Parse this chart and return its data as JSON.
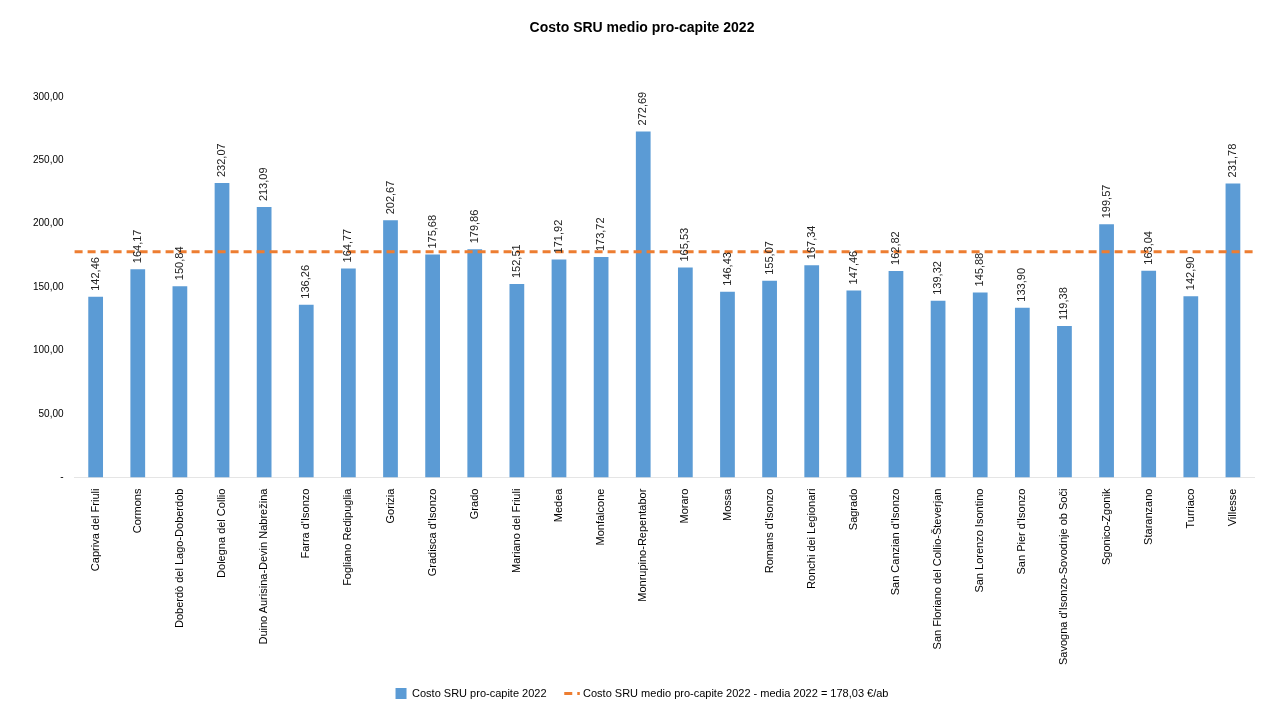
{
  "chart_data": {
    "type": "bar",
    "title": "Costo SRU medio pro-capite 2022",
    "categories": [
      "Capriva del Friuli",
      "Cormons",
      "Doberdò del Lago-Doberdob",
      "Dolegna del Collio",
      "Duino Aurisina-Devin Nabrežina",
      "Farra d'Isonzo",
      "Fogliano Redipuglia",
      "Gorizia",
      "Gradisca d'Isonzo",
      "Grado",
      "Mariano del Friuli",
      "Medea",
      "Monfalcone",
      "Monrupino-Repentabor",
      "Moraro",
      "Mossa",
      "Romans d'Isonzo",
      "Ronchi dei Legionari",
      "Sagrado",
      "San Canzian d'Isonzo",
      "San Floriano del Collio-Števerjan",
      "San Lorenzo Isontino",
      "San Pier d'Isonzo",
      "Savogna d'Isonzo-Sovodnje ob Soči",
      "Sgonico-Zgonik",
      "Staranzano",
      "Turriaco",
      "Villesse"
    ],
    "series": [
      {
        "name": "Costo SRU pro-capite 2022",
        "color": "#5b9bd5",
        "values": [
          142.46,
          164.17,
          150.84,
          232.07,
          213.09,
          136.26,
          164.77,
          202.67,
          175.68,
          179.86,
          152.51,
          171.92,
          173.72,
          272.69,
          165.53,
          146.43,
          155.07,
          167.34,
          147.46,
          162.82,
          139.32,
          145.88,
          133.9,
          119.38,
          199.57,
          163.04,
          142.9,
          231.78
        ],
        "value_labels": [
          "142,46",
          "164,17",
          "150,84",
          "232,07",
          "213,09",
          "136,26",
          "164,77",
          "202,67",
          "175,68",
          "179,86",
          "152,51",
          "171,92",
          "173,72",
          "272,69",
          "165,53",
          "146,43",
          "155,07",
          "167,34",
          "147,46",
          "162,82",
          "139,32",
          "145,88",
          "133,90",
          "119,38",
          "199,57",
          "163,04",
          "142,90",
          "231,78"
        ]
      }
    ],
    "ylim": [
      0,
      300
    ],
    "yticks": [
      {
        "value": 0,
        "label": "-"
      },
      {
        "value": 50,
        "label": "50,00"
      },
      {
        "value": 100,
        "label": "100,00"
      },
      {
        "value": 150,
        "label": "150,00"
      },
      {
        "value": 200,
        "label": "200,00"
      },
      {
        "value": 250,
        "label": "250,00"
      },
      {
        "value": 300,
        "label": "300,00"
      }
    ],
    "ref_lines": [
      {
        "axis": "y",
        "value": 178.03,
        "label": "Costo SRU medio pro-capite 2022 - media 2022 = 178,03 €/ab",
        "color": "#ed7d31",
        "line_style": "dashed"
      }
    ],
    "grid": false,
    "legend": "bottom"
  }
}
